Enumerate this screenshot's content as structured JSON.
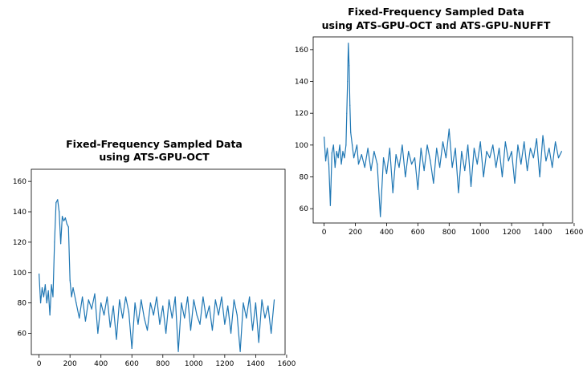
{
  "chart_data": [
    {
      "type": "line",
      "title": "Fixed-Frequency Sampled Data",
      "subtitle": "using ATS-GPU-OCT",
      "xlabel": "",
      "ylabel": "",
      "xlim": [
        -50,
        1590
      ],
      "ylim": [
        46,
        168
      ],
      "xticks": [
        0,
        200,
        400,
        600,
        800,
        1000,
        1200,
        1400,
        1600
      ],
      "yticks": [
        60,
        80,
        100,
        120,
        140,
        160
      ],
      "grid": false,
      "color": "#1f77b4",
      "x": [
        0,
        10,
        20,
        30,
        40,
        50,
        60,
        70,
        80,
        90,
        100,
        110,
        120,
        130,
        140,
        150,
        160,
        170,
        180,
        190,
        200,
        210,
        220,
        240,
        260,
        280,
        300,
        320,
        340,
        360,
        380,
        400,
        420,
        440,
        460,
        480,
        500,
        520,
        540,
        560,
        580,
        600,
        620,
        640,
        660,
        680,
        700,
        720,
        740,
        760,
        780,
        800,
        820,
        840,
        860,
        880,
        900,
        920,
        940,
        960,
        980,
        1000,
        1020,
        1040,
        1060,
        1080,
        1100,
        1120,
        1140,
        1160,
        1180,
        1200,
        1220,
        1240,
        1260,
        1280,
        1300,
        1320,
        1340,
        1360,
        1380,
        1400,
        1420,
        1440,
        1460,
        1480,
        1500,
        1520
      ],
      "values": [
        99,
        80,
        90,
        84,
        92,
        80,
        88,
        72,
        92,
        84,
        120,
        146,
        148,
        140,
        119,
        137,
        134,
        136,
        132,
        130,
        95,
        84,
        90,
        80,
        70,
        84,
        68,
        82,
        76,
        86,
        60,
        80,
        72,
        84,
        64,
        78,
        56,
        82,
        70,
        84,
        74,
        50,
        80,
        66,
        82,
        70,
        62,
        80,
        72,
        84,
        66,
        78,
        60,
        82,
        70,
        84,
        48,
        80,
        70,
        84,
        62,
        82,
        72,
        66,
        84,
        70,
        78,
        62,
        82,
        72,
        84,
        66,
        78,
        60,
        82,
        72,
        48,
        80,
        70,
        84,
        62,
        80,
        54,
        82,
        70,
        78,
        60,
        82
      ]
    },
    {
      "type": "line",
      "title": "Fixed-Frequency Sampled Data",
      "subtitle": "using ATS-GPU-OCT and ATS-GPU-NUFFT",
      "xlabel": "",
      "ylabel": "",
      "xlim": [
        -70,
        1590
      ],
      "ylim": [
        51,
        168
      ],
      "xticks": [
        0,
        200,
        400,
        600,
        800,
        1000,
        1200,
        1400,
        1600
      ],
      "yticks": [
        60,
        80,
        100,
        120,
        140,
        160
      ],
      "grid": false,
      "color": "#1f77b4",
      "x": [
        0,
        10,
        20,
        30,
        40,
        50,
        60,
        70,
        80,
        90,
        100,
        110,
        120,
        130,
        140,
        145,
        150,
        155,
        160,
        165,
        170,
        180,
        190,
        200,
        210,
        220,
        240,
        260,
        280,
        300,
        320,
        340,
        360,
        380,
        400,
        420,
        440,
        460,
        480,
        500,
        520,
        540,
        560,
        580,
        600,
        620,
        640,
        660,
        680,
        700,
        720,
        740,
        760,
        780,
        800,
        820,
        840,
        860,
        880,
        900,
        920,
        940,
        960,
        980,
        1000,
        1020,
        1040,
        1060,
        1080,
        1100,
        1120,
        1140,
        1160,
        1180,
        1200,
        1220,
        1240,
        1260,
        1280,
        1300,
        1320,
        1340,
        1360,
        1380,
        1400,
        1420,
        1440,
        1460,
        1480,
        1500,
        1520
      ],
      "values": [
        105,
        90,
        98,
        88,
        62,
        95,
        100,
        86,
        96,
        92,
        100,
        88,
        96,
        92,
        100,
        120,
        140,
        164,
        150,
        125,
        108,
        100,
        92,
        96,
        100,
        88,
        94,
        86,
        98,
        84,
        96,
        88,
        55,
        92,
        82,
        98,
        70,
        94,
        86,
        100,
        80,
        96,
        88,
        92,
        72,
        98,
        84,
        100,
        90,
        76,
        98,
        86,
        102,
        92,
        110,
        86,
        98,
        70,
        96,
        84,
        100,
        74,
        98,
        88,
        102,
        80,
        96,
        92,
        100,
        86,
        98,
        80,
        102,
        90,
        96,
        76,
        100,
        88,
        102,
        84,
        98,
        92,
        104,
        80,
        106,
        90,
        98,
        86,
        102,
        92,
        96
      ]
    }
  ]
}
